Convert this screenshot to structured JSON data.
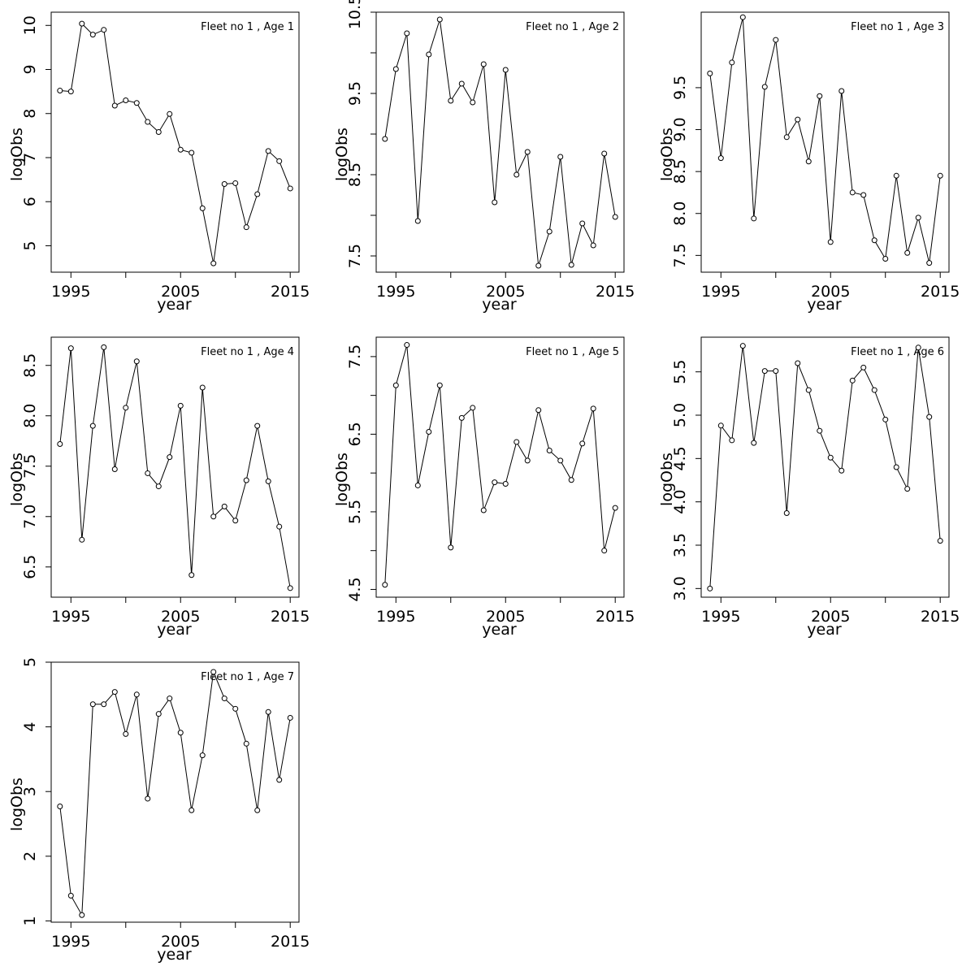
{
  "figure": {
    "background": "#ffffff",
    "line_color": "#000000"
  },
  "chart_data": [
    {
      "type": "line",
      "title": "Fleet no 1 , Age 1",
      "xlabel": "year",
      "ylabel": "logObs",
      "x": [
        1994,
        1995,
        1996,
        1997,
        1998,
        1999,
        2000,
        2001,
        2002,
        2003,
        2004,
        2005,
        2006,
        2007,
        2008,
        2009,
        2010,
        2011,
        2012,
        2013,
        2014,
        2015
      ],
      "values": [
        8.52,
        8.5,
        10.04,
        9.79,
        9.9,
        8.18,
        8.3,
        8.24,
        7.81,
        7.58,
        7.99,
        7.18,
        7.11,
        5.85,
        4.6,
        6.4,
        6.42,
        5.42,
        6.17,
        7.15,
        6.92,
        6.3
      ],
      "xlim": [
        1993.2,
        2015.8
      ],
      "ylim": [
        4.4,
        10.3
      ],
      "xticks": [
        1995,
        2000,
        2005,
        2010,
        2015
      ],
      "xticklabels": [
        "1995",
        "",
        "2005",
        "",
        "2015"
      ],
      "yticks": [
        5,
        6,
        7,
        8,
        9,
        10
      ],
      "yticklabels": [
        "5",
        "6",
        "7",
        "8",
        "9",
        "10"
      ],
      "grid": false
    },
    {
      "type": "line",
      "title": "Fleet no 1 , Age 2",
      "xlabel": "year",
      "ylabel": "logObs",
      "x": [
        1994,
        1995,
        1996,
        1997,
        1998,
        1999,
        2000,
        2001,
        2002,
        2003,
        2004,
        2005,
        2006,
        2007,
        2008,
        2009,
        2010,
        2011,
        2012,
        2013,
        2014,
        2015
      ],
      "values": [
        8.94,
        9.8,
        10.24,
        7.93,
        9.98,
        10.41,
        9.41,
        9.62,
        9.39,
        9.86,
        8.16,
        9.79,
        8.5,
        8.78,
        7.38,
        7.8,
        8.72,
        7.39,
        7.9,
        7.63,
        8.76,
        7.98
      ],
      "xlim": [
        1993.2,
        2015.8
      ],
      "ylim": [
        7.3,
        10.5
      ],
      "xticks": [
        1995,
        2000,
        2005,
        2010,
        2015
      ],
      "xticklabels": [
        "1995",
        "",
        "2005",
        "",
        "2015"
      ],
      "yticks": [
        7.5,
        8.0,
        8.5,
        9.0,
        9.5,
        10.0,
        10.5
      ],
      "yticklabels": [
        "7.5",
        "",
        "8.5",
        "",
        "9.5",
        "",
        "10.5"
      ],
      "grid": false
    },
    {
      "type": "line",
      "title": "Fleet no 1 , Age 3",
      "xlabel": "year",
      "ylabel": "logObs",
      "x": [
        1994,
        1995,
        1996,
        1997,
        1998,
        1999,
        2000,
        2001,
        2002,
        2003,
        2004,
        2005,
        2006,
        2007,
        2008,
        2009,
        2010,
        2011,
        2012,
        2013,
        2014,
        2015
      ],
      "values": [
        9.67,
        8.66,
        9.8,
        10.34,
        7.94,
        9.51,
        10.07,
        8.91,
        9.12,
        8.62,
        9.4,
        7.66,
        9.46,
        8.25,
        8.22,
        7.68,
        7.46,
        8.45,
        7.53,
        7.95,
        7.41,
        8.45
      ],
      "xlim": [
        1993.2,
        2015.8
      ],
      "ylim": [
        7.3,
        10.4
      ],
      "xticks": [
        1995,
        2000,
        2005,
        2010,
        2015
      ],
      "xticklabels": [
        "1995",
        "",
        "2005",
        "",
        "2015"
      ],
      "yticks": [
        7.5,
        8.0,
        8.5,
        9.0,
        9.5
      ],
      "yticklabels": [
        "7.5",
        "8.0",
        "8.5",
        "9.0",
        "9.5"
      ],
      "grid": false
    },
    {
      "type": "line",
      "title": "Fleet no 1 , Age 4",
      "xlabel": "year",
      "ylabel": "logObs",
      "x": [
        1994,
        1995,
        1996,
        1997,
        1998,
        1999,
        2000,
        2001,
        2002,
        2003,
        2004,
        2005,
        2006,
        2007,
        2008,
        2009,
        2010,
        2011,
        2012,
        2013,
        2014,
        2015
      ],
      "values": [
        7.72,
        8.67,
        6.77,
        7.9,
        8.68,
        7.47,
        8.08,
        8.54,
        7.43,
        7.3,
        7.59,
        8.1,
        6.42,
        8.28,
        7.0,
        7.1,
        6.96,
        7.36,
        7.9,
        7.35,
        6.9,
        6.29
      ],
      "xlim": [
        1993.2,
        2015.8
      ],
      "ylim": [
        6.2,
        8.78
      ],
      "xticks": [
        1995,
        2000,
        2005,
        2010,
        2015
      ],
      "xticklabels": [
        "1995",
        "",
        "2005",
        "",
        "2015"
      ],
      "yticks": [
        6.5,
        7.0,
        7.5,
        8.0,
        8.5
      ],
      "yticklabels": [
        "6.5",
        "7.0",
        "7.5",
        "8.0",
        "8.5"
      ],
      "grid": false
    },
    {
      "type": "line",
      "title": "Fleet no 1 , Age 5",
      "xlabel": "year",
      "ylabel": "logObs",
      "x": [
        1994,
        1995,
        1996,
        1997,
        1998,
        1999,
        2000,
        2001,
        2002,
        2003,
        2004,
        2005,
        2006,
        2007,
        2008,
        2009,
        2010,
        2011,
        2012,
        2013,
        2014,
        2015
      ],
      "values": [
        4.56,
        7.13,
        7.65,
        5.84,
        6.53,
        7.13,
        5.04,
        6.71,
        6.84,
        5.52,
        5.88,
        5.86,
        6.4,
        6.16,
        6.81,
        6.29,
        6.16,
        5.91,
        6.38,
        6.83,
        5.0,
        5.55
      ],
      "xlim": [
        1993.2,
        2015.8
      ],
      "ylim": [
        4.4,
        7.75
      ],
      "xticks": [
        1995,
        2000,
        2005,
        2010,
        2015
      ],
      "xticklabels": [
        "1995",
        "",
        "2005",
        "",
        "2015"
      ],
      "yticks": [
        4.5,
        5.0,
        5.5,
        6.0,
        6.5,
        7.0,
        7.5
      ],
      "yticklabels": [
        "4.5",
        "",
        "5.5",
        "",
        "6.5",
        "",
        "7.5"
      ],
      "grid": false
    },
    {
      "type": "line",
      "title": "Fleet no 1 , Age 6",
      "xlabel": "year",
      "ylabel": "logObs",
      "x": [
        1994,
        1995,
        1996,
        1997,
        1998,
        1999,
        2000,
        2001,
        2002,
        2003,
        2004,
        2005,
        2006,
        2007,
        2008,
        2009,
        2010,
        2011,
        2012,
        2013,
        2014,
        2015
      ],
      "values": [
        3.0,
        4.88,
        4.71,
        5.8,
        4.68,
        5.51,
        5.51,
        3.87,
        5.6,
        5.29,
        4.82,
        4.51,
        4.36,
        5.4,
        5.55,
        5.29,
        4.95,
        4.4,
        4.15,
        5.78,
        4.98,
        3.55
      ],
      "xlim": [
        1993.2,
        2015.8
      ],
      "ylim": [
        2.9,
        5.9
      ],
      "xticks": [
        1995,
        2000,
        2005,
        2010,
        2015
      ],
      "xticklabels": [
        "1995",
        "",
        "2005",
        "",
        "2015"
      ],
      "yticks": [
        3.0,
        3.5,
        4.0,
        4.5,
        5.0,
        5.5
      ],
      "yticklabels": [
        "3.0",
        "3.5",
        "4.0",
        "4.5",
        "5.0",
        "5.5"
      ],
      "grid": false
    },
    {
      "type": "line",
      "title": "Fleet no 1 , Age 7",
      "xlabel": "year",
      "ylabel": "logObs",
      "x": [
        1994,
        1995,
        1996,
        1997,
        1998,
        1999,
        2000,
        2001,
        2002,
        2003,
        2004,
        2005,
        2006,
        2007,
        2008,
        2009,
        2010,
        2011,
        2012,
        2013,
        2014,
        2015
      ],
      "values": [
        2.77,
        1.39,
        1.09,
        4.35,
        4.35,
        4.54,
        3.89,
        4.5,
        2.89,
        4.2,
        4.44,
        3.91,
        2.71,
        3.56,
        4.85,
        4.44,
        4.28,
        3.74,
        2.71,
        4.23,
        3.18,
        4.14
      ],
      "xlim": [
        1993.2,
        2015.8
      ],
      "ylim": [
        0.98,
        5.0
      ],
      "xticks": [
        1995,
        2000,
        2005,
        2010,
        2015
      ],
      "xticklabels": [
        "1995",
        "",
        "2005",
        "",
        "2015"
      ],
      "yticks": [
        1,
        2,
        3,
        4,
        5
      ],
      "yticklabels": [
        "1",
        "2",
        "3",
        "4",
        "5"
      ],
      "grid": false
    }
  ]
}
